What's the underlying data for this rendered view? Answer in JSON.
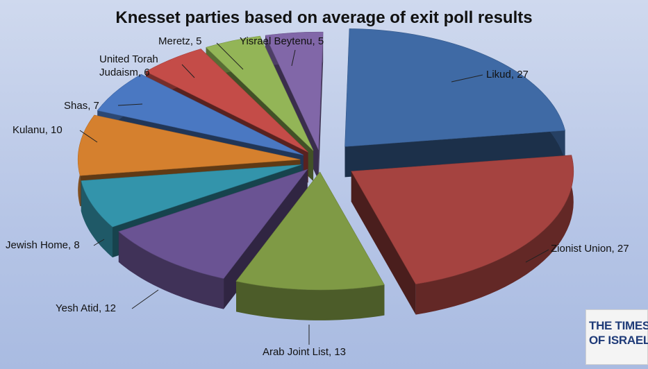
{
  "chart_data": {
    "type": "pie",
    "title": "Knesset parties based on average of exit poll results",
    "slices": [
      {
        "label": "Likud",
        "value": 27,
        "color": "#3f6aa5",
        "text": "Likud, 27"
      },
      {
        "label": "Zionist Union",
        "value": 27,
        "color": "#a54340",
        "text": "Zionist Union, 27"
      },
      {
        "label": "Arab Joint List",
        "value": 13,
        "color": "#7f9a45",
        "text": "Arab Joint List, 13"
      },
      {
        "label": "Yesh Atid",
        "value": 12,
        "color": "#6a5393",
        "text": "Yesh Atid, 12"
      },
      {
        "label": "Jewish Home",
        "value": 8,
        "color": "#3394ab",
        "text": "Jewish Home, 8"
      },
      {
        "label": "Kulanu",
        "value": 10,
        "color": "#d5802e",
        "text": "Kulanu, 10"
      },
      {
        "label": "Shas",
        "value": 7,
        "color": "#4a78c2",
        "text": "Shas, 7"
      },
      {
        "label": "United Torah Judaism",
        "value": 6,
        "color": "#c44c48",
        "text": [
          "United Torah",
          "Judaism, 6"
        ]
      },
      {
        "label": "Meretz",
        "value": 5,
        "color": "#93b557",
        "text": "Meretz, 5"
      },
      {
        "label": "Yisrael Beytenu",
        "value": 5,
        "color": "#8167a8",
        "text": "Yisrael Beytenu, 5"
      }
    ]
  },
  "logo": {
    "line1": "THE TIMES",
    "line2": "OF ISRAEL"
  }
}
